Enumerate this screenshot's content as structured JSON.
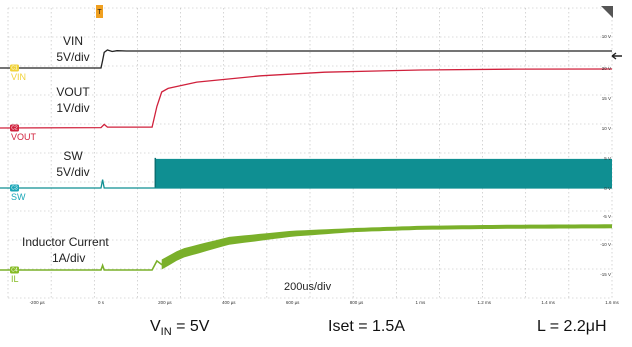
{
  "chart_data": {
    "type": "line",
    "title": "",
    "timebase": "200us/div",
    "x_ticks": [
      "-200 µs",
      "0 s",
      "200 µs",
      "400 µs",
      "600 µs",
      "800 µs",
      "1 ms",
      "1.2 ms",
      "1.4 ms",
      "1.6 ms"
    ],
    "right_ticks": [
      "10 V",
      "20 V",
      "15 V",
      "10 V",
      "5 V",
      "0 V",
      "-5 V",
      "-10 V",
      "-15 V"
    ],
    "channels": [
      {
        "name": "VIN",
        "tag": "C1",
        "marker": "C1",
        "tag_label": "VIN",
        "scale_line1": "VIN",
        "scale_line2": "5V/div",
        "color": "#f0d23a",
        "trace_color": "#222222",
        "samples": [
          [
            -0.32,
            0
          ],
          [
            0.0,
            0
          ],
          [
            0.005,
            2.2
          ],
          [
            0.01,
            4.6
          ],
          [
            0.02,
            5.3
          ],
          [
            0.035,
            4.85
          ],
          [
            0.05,
            5.1
          ],
          [
            0.08,
            5.0
          ],
          [
            1.6,
            5.0
          ]
        ]
      },
      {
        "name": "VOUT",
        "tag": "C2",
        "marker": "C2",
        "tag_label": "VOUT",
        "scale_line1": "VOUT",
        "scale_line2": "1V/div",
        "color": "#d0213c",
        "trace_color": "#d0213c",
        "samples": [
          [
            -0.32,
            0
          ],
          [
            0.0,
            0.02
          ],
          [
            0.01,
            0.2
          ],
          [
            0.02,
            0.05
          ],
          [
            0.16,
            0.05
          ],
          [
            0.175,
            1.2
          ],
          [
            0.19,
            2.0
          ],
          [
            0.21,
            2.2
          ],
          [
            0.3,
            2.55
          ],
          [
            0.5,
            2.9
          ],
          [
            0.7,
            3.1
          ],
          [
            1.0,
            3.22
          ],
          [
            1.3,
            3.27
          ],
          [
            1.6,
            3.28
          ]
        ]
      },
      {
        "name": "SW",
        "tag": "C3",
        "marker": "C3",
        "tag_label": "SW",
        "scale_line1": "SW",
        "scale_line2": "5V/div",
        "color": "#1aa6b7",
        "trace_color": "#0f8f92",
        "samples": [
          [
            -0.32,
            0
          ],
          [
            0.0,
            0
          ],
          [
            0.005,
            1.5
          ],
          [
            0.01,
            0
          ],
          [
            0.17,
            0
          ],
          [
            1.6,
            0
          ]
        ],
        "switching": {
          "start": 0.17,
          "end": 1.6,
          "low": 0.0,
          "high": 5.2
        }
      },
      {
        "name": "IL",
        "tag": "C4",
        "marker": "C4",
        "tag_label": "IL",
        "scale_line1": "Inductor Current",
        "scale_line2": "1A/div",
        "color": "#86bc25",
        "trace_color": "#7ab02a",
        "samples": [
          [
            -0.32,
            0
          ],
          [
            0.0,
            0
          ],
          [
            0.005,
            0.25
          ],
          [
            0.01,
            0
          ],
          [
            0.16,
            0
          ],
          [
            0.175,
            0.5
          ],
          [
            0.19,
            0.3
          ],
          [
            0.25,
            0.9
          ],
          [
            0.4,
            1.6
          ],
          [
            0.6,
            2.0
          ],
          [
            0.8,
            2.2
          ],
          [
            1.0,
            2.32
          ],
          [
            1.3,
            2.38
          ],
          [
            1.6,
            2.4
          ]
        ],
        "ripple_envelope": {
          "start": 0.19,
          "end": 1.6,
          "max_width": 0.55,
          "min_width": 0.22
        }
      }
    ],
    "ylim_divs": [
      0,
      10
    ]
  },
  "footer": {
    "vin_main": "V",
    "vin_sub": "IN",
    "vin_value": " = 5V",
    "iset": "Iset = 1.5A",
    "inductor": "L = 2.2μH"
  }
}
